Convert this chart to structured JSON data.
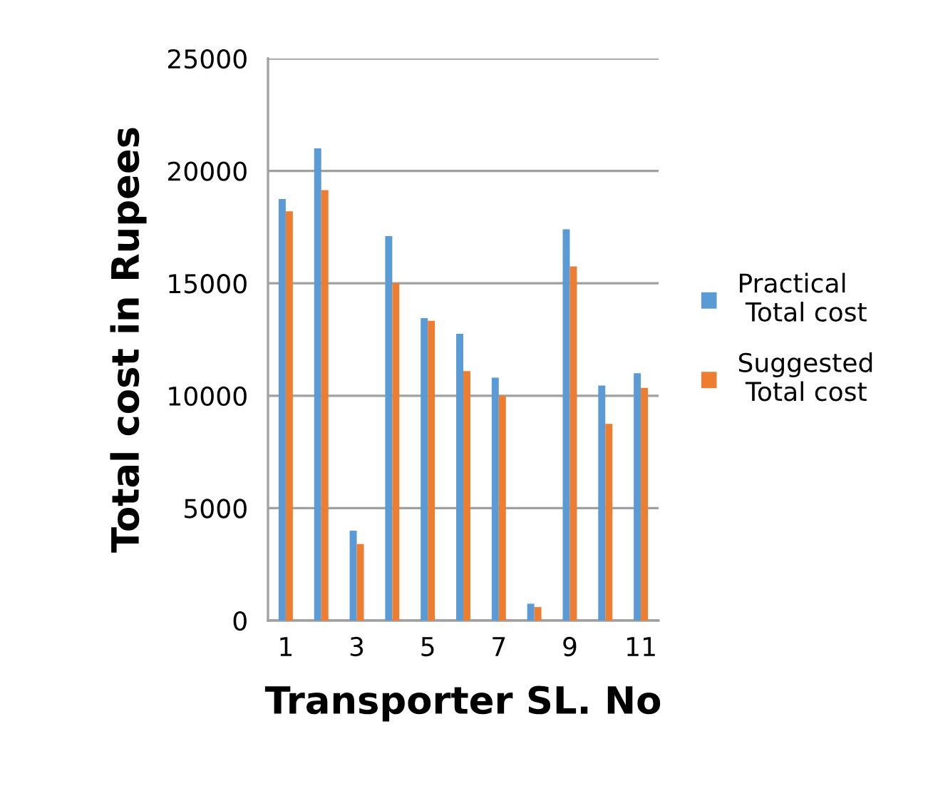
{
  "chart_data": {
    "type": "bar",
    "xlabel": "Transporter SL. No",
    "ylabel": "Total cost in Rupees",
    "categories": [
      "1",
      null,
      "3",
      null,
      "5",
      null,
      "7",
      null,
      "9",
      null,
      "11"
    ],
    "series": [
      {
        "name": "Practical\n Total cost",
        "color": "#5b9bd5",
        "values": [
          18750,
          21000,
          4000,
          17100,
          13450,
          12750,
          10800,
          750,
          17400,
          10450,
          11000
        ]
      },
      {
        "name": "Suggested\n Total cost",
        "color": "#ed7d31",
        "values": [
          18200,
          19150,
          3400,
          15000,
          13330,
          11100,
          10000,
          600,
          15750,
          8750,
          10350
        ]
      }
    ],
    "ylim": [
      0,
      25000
    ],
    "yticks": [
      0,
      5000,
      10000,
      15000,
      20000,
      25000
    ],
    "grid": "y",
    "legend": "right"
  }
}
